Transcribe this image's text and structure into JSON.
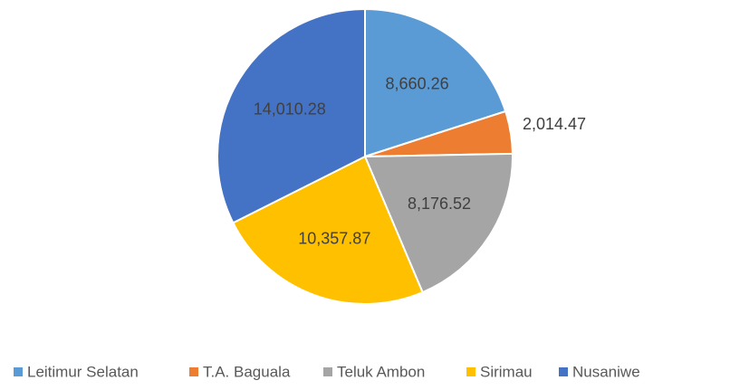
{
  "chart_data": {
    "type": "pie",
    "categories": [
      "Leitimur Selatan",
      "T.A. Baguala",
      "Teluk Ambon",
      "Sirimau",
      "Nusaniwe"
    ],
    "values": [
      8660.26,
      2014.47,
      8176.52,
      10357.87,
      14010.28
    ],
    "value_labels": [
      "8,660.26",
      "2,014.47",
      "8,176.52",
      "10,357.87",
      "14,010.28"
    ],
    "colors": [
      "#5b9bd5",
      "#ed7d31",
      "#a5a5a5",
      "#ffc000",
      "#4472c4"
    ],
    "legend": "bottom"
  }
}
